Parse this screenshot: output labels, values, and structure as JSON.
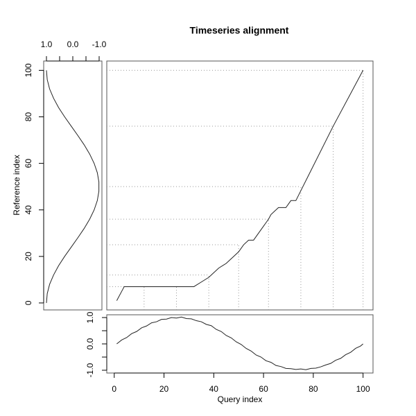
{
  "chart_data": [
    {
      "type": "line",
      "title": "Timeseries alignment",
      "x": [
        1,
        4,
        32,
        35,
        38,
        42,
        45,
        48,
        50,
        52,
        54,
        56,
        62,
        63,
        66,
        69,
        71,
        73,
        88,
        100
      ],
      "values": [
        1,
        7,
        7,
        9,
        11,
        15,
        17,
        20,
        22,
        25,
        27,
        27,
        36,
        38,
        41,
        41,
        44,
        44,
        76,
        100
      ],
      "guides": {
        "query": [
          12,
          25,
          38,
          50,
          62,
          75,
          88,
          100
        ],
        "reference": [
          7,
          7,
          12,
          25,
          36,
          50,
          76,
          100
        ]
      },
      "xlim": [
        -3,
        104
      ],
      "ylim": [
        -3,
        104
      ],
      "color": "#222222"
    },
    {
      "type": "line",
      "orientation": "vertical",
      "ylabel": "Reference index",
      "x": [
        0,
        4,
        8,
        12,
        16,
        20,
        24,
        28,
        32,
        36,
        40,
        44,
        48,
        52,
        56,
        60,
        64,
        68,
        72,
        76,
        80,
        84,
        88,
        92,
        96,
        100
      ],
      "values": [
        1,
        0.97,
        0.88,
        0.73,
        0.54,
        0.31,
        0.06,
        -0.19,
        -0.43,
        -0.64,
        -0.81,
        -0.93,
        -0.99,
        -0.99,
        -0.93,
        -0.81,
        -0.64,
        -0.43,
        -0.19,
        0.06,
        0.31,
        0.54,
        0.73,
        0.88,
        0.97,
        1
      ],
      "xlim": [
        1.105,
        -1.105
      ],
      "xticks": [
        {
          "value": 1,
          "label": "1.0"
        },
        {
          "value": 0,
          "label": "0.0"
        },
        {
          "value": -1,
          "label": "-1.0"
        }
      ],
      "xticks_minor": [
        0.5,
        -0.5
      ],
      "ylim": [
        -3,
        104
      ],
      "yticks": [
        0,
        20,
        40,
        60,
        80,
        100
      ],
      "color": "#222222"
    },
    {
      "type": "line",
      "xlabel": "Query index",
      "x": [
        1,
        3,
        5,
        7,
        9,
        11,
        13,
        15,
        17,
        19,
        21,
        23,
        25,
        27,
        29,
        31,
        33,
        35,
        37,
        39,
        41,
        43,
        45,
        47,
        49,
        51,
        53,
        55,
        57,
        59,
        61,
        63,
        65,
        67,
        69,
        71,
        73,
        75,
        77,
        79,
        81,
        83,
        85,
        87,
        89,
        91,
        93,
        95,
        97,
        99,
        100
      ],
      "values": [
        0,
        0.15,
        0.24,
        0.39,
        0.47,
        0.61,
        0.68,
        0.8,
        0.84,
        0.93,
        0.94,
        1.0,
        0.98,
        1.02,
        0.96,
        0.95,
        0.88,
        0.84,
        0.74,
        0.69,
        0.55,
        0.47,
        0.32,
        0.23,
        0.08,
        -0.02,
        -0.17,
        -0.27,
        -0.42,
        -0.5,
        -0.64,
        -0.7,
        -0.82,
        -0.86,
        -0.93,
        -0.94,
        -0.97,
        -0.95,
        -0.98,
        -0.93,
        -0.92,
        -0.87,
        -0.8,
        -0.74,
        -0.62,
        -0.55,
        -0.41,
        -0.32,
        -0.17,
        -0.08,
        0
      ],
      "xlim": [
        -3,
        104
      ],
      "xticks": [
        0,
        20,
        40,
        60,
        80,
        100
      ],
      "ylim": [
        -1.105,
        1.105
      ],
      "yticks": [
        {
          "value": 1,
          "label": "1.0"
        },
        {
          "value": 0,
          "label": "0.0"
        },
        {
          "value": -1,
          "label": "-1.0"
        }
      ],
      "yticks_minor": [
        0.5,
        -0.5
      ],
      "color": "#222222"
    }
  ]
}
